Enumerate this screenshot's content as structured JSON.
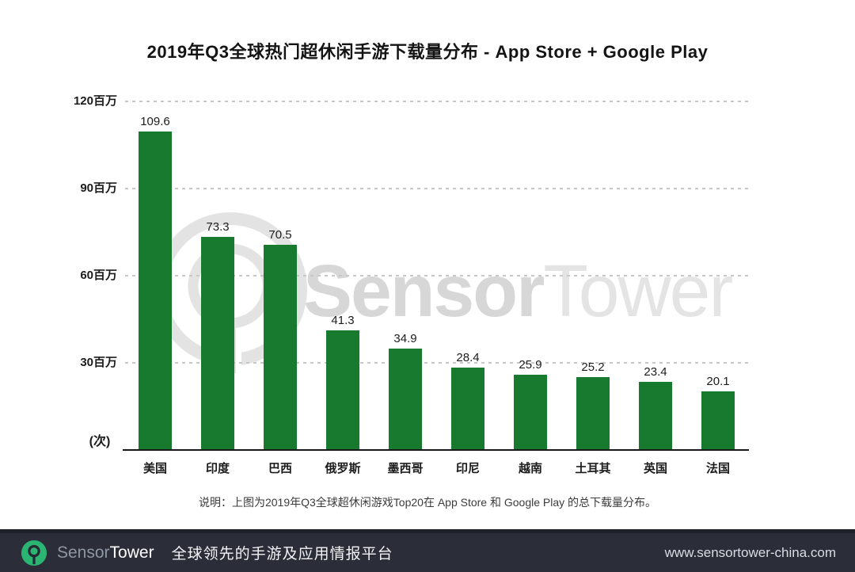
{
  "title": "2019年Q3全球热门超休闲手游下载量分布 - App Store + Google Play",
  "chart_data": {
    "type": "bar",
    "categories": [
      "美国",
      "印度",
      "巴西",
      "俄罗斯",
      "墨西哥",
      "印尼",
      "越南",
      "土耳其",
      "英国",
      "法国"
    ],
    "values": [
      109.6,
      73.3,
      70.5,
      41.3,
      34.9,
      28.4,
      25.9,
      25.2,
      23.4,
      20.1
    ],
    "title": "2019年Q3全球热门超休闲手游下载量分布 - App Store + Google Play",
    "xlabel": "",
    "ylabel": "(次)",
    "ylim": [
      0,
      120
    ],
    "y_ticks": [
      {
        "value": 30,
        "label": "30百万"
      },
      {
        "value": 60,
        "label": "60百万"
      },
      {
        "value": 90,
        "label": "90百万"
      },
      {
        "value": 120,
        "label": "120百万"
      }
    ],
    "grid": true,
    "legend": false,
    "value_labels_shown": true,
    "bar_color": "#177a2f"
  },
  "watermark": {
    "icon": "sensortower-ring-icon",
    "text_bold": "Sensor",
    "text_light": "Tower"
  },
  "note": "说明：上图为2019年Q3全球超休闲游戏Top20在 App Store 和 Google Play 的总下载量分布。",
  "footer": {
    "brand_part1": "Sensor",
    "brand_part2": "Tower",
    "tagline": "全球领先的手游及应用情报平台",
    "url": "www.sensortower-china.com",
    "bg_color": "#2b2d39",
    "logo_green": "#2bb573"
  }
}
